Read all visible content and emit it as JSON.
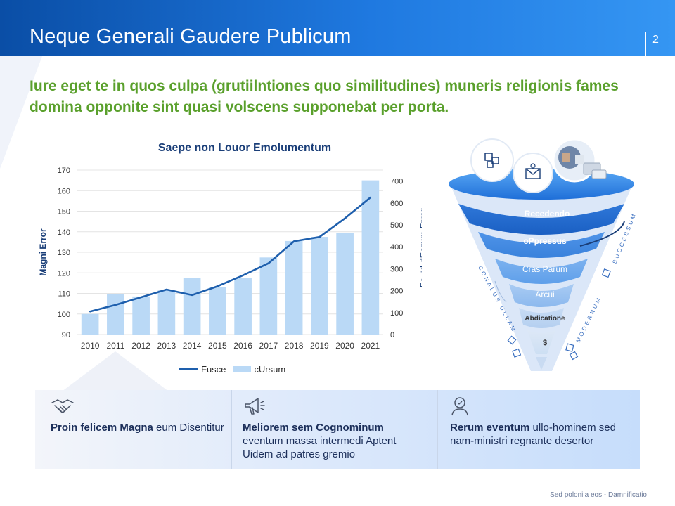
{
  "header": {
    "title": "Neque Generali Gaudere Publicum",
    "page_number": "2"
  },
  "subtitle": "Iure eget te in quos culpa (grutiilntiones quo similitudines) muneris religionis fames domina opponite sint quasi volscens supponebat per porta.",
  "chart_data": {
    "type": "bar",
    "title": "Saepe non Louor Emolumentum",
    "categories": [
      "2010",
      "2011",
      "2012",
      "2013",
      "2014",
      "2015",
      "2016",
      "2017",
      "2018",
      "2019",
      "2020",
      "2021"
    ],
    "ylabel": "Magni Error",
    "y2label": "Ea. id dEorum Error",
    "ylim": [
      90,
      170
    ],
    "y2lim": [
      0,
      750
    ],
    "yticks": [
      90,
      100,
      110,
      120,
      130,
      140,
      150,
      160,
      170
    ],
    "y2ticks": [
      0,
      100,
      200,
      300,
      400,
      500,
      600,
      700
    ],
    "series": [
      {
        "name": "cUrsum",
        "type": "bar",
        "axis": "left",
        "color": "#bad9f6",
        "values": [
          100,
          109.5,
          108.5,
          111.5,
          117.5,
          113,
          117.5,
          127.5,
          135.5,
          137.5,
          139.5,
          165
        ]
      },
      {
        "name": "Fusce",
        "type": "line",
        "axis": "right",
        "color": "#1e5fad",
        "values": [
          105,
          135,
          170,
          205,
          180,
          220,
          270,
          325,
          425,
          445,
          530,
          625
        ]
      }
    ],
    "legend": "bottom"
  },
  "funnel": {
    "levels": [
      "Recedendo",
      "oPpressus",
      "Cras Parum",
      "Arcui",
      "Abdicatione",
      "$"
    ],
    "left_side": "CONALUS ULLAM",
    "right_top": "SUCCESSUM",
    "right_bottom": "MODERNUM",
    "icons": [
      "puzzle-icon",
      "mail-icon",
      "team-photo"
    ]
  },
  "features": [
    {
      "icon": "handshake-icon",
      "bold": "Proin felicem Magna",
      "text": " eum Disentitur"
    },
    {
      "icon": "megaphone-icon",
      "bold": "Meliorem sem Cognominum",
      "text": " eventum massa intermedi Aptent Uidem ad patres gremio"
    },
    {
      "icon": "award-person-icon",
      "bold": "Rerum eventum",
      "text": " ullo-hominem sed nam-ministri regnante desertor"
    }
  ],
  "footer": "Sed poloniia eos - Damnificatio"
}
